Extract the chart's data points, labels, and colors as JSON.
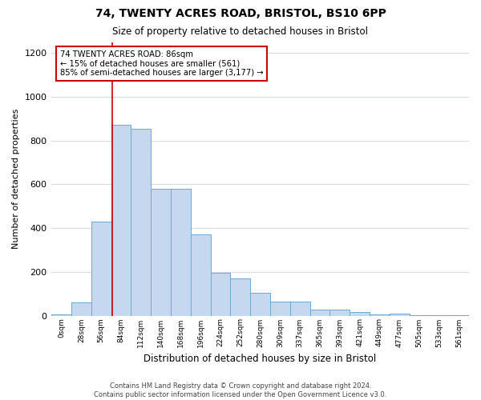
{
  "title": "74, TWENTY ACRES ROAD, BRISTOL, BS10 6PP",
  "subtitle": "Size of property relative to detached houses in Bristol",
  "xlabel": "Distribution of detached houses by size in Bristol",
  "ylabel": "Number of detached properties",
  "footer_line1": "Contains HM Land Registry data © Crown copyright and database right 2024.",
  "footer_line2": "Contains public sector information licensed under the Open Government Licence v3.0.",
  "annotation_title": "74 TWENTY ACRES ROAD: 86sqm",
  "annotation_line2": "← 15% of detached houses are smaller (561)",
  "annotation_line3": "85% of semi-detached houses are larger (3,177) →",
  "bar_color": "#c5d8f0",
  "bar_edge_color": "#6aaad4",
  "red_line_color": "#cc0000",
  "annotation_box_edge": "#cc0000",
  "background_color": "#ffffff",
  "grid_color": "#d0dce8",
  "categories": [
    "0sqm",
    "28sqm",
    "56sqm",
    "84sqm",
    "112sqm",
    "140sqm",
    "168sqm",
    "196sqm",
    "224sqm",
    "252sqm",
    "280sqm",
    "309sqm",
    "337sqm",
    "365sqm",
    "393sqm",
    "421sqm",
    "449sqm",
    "477sqm",
    "505sqm",
    "533sqm",
    "561sqm"
  ],
  "values": [
    5,
    60,
    430,
    870,
    855,
    580,
    580,
    370,
    195,
    170,
    105,
    65,
    65,
    28,
    28,
    18,
    5,
    8,
    3,
    3,
    2
  ],
  "bin_width": 28,
  "property_size": 86,
  "property_bin_index": 3,
  "ylim": [
    0,
    1250
  ],
  "yticks": [
    0,
    200,
    400,
    600,
    800,
    1000,
    1200
  ],
  "red_line_x": 3.07
}
